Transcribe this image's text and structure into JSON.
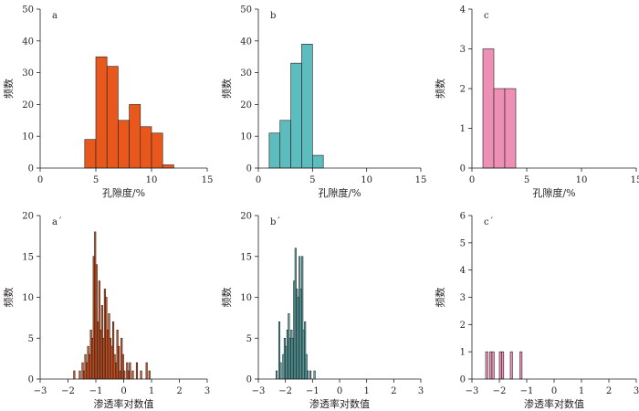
{
  "chart_data": [
    {
      "type": "bar",
      "panel_label": "a",
      "xlabel": "孔隙度/%",
      "ylabel": "频数",
      "xlim": [
        0,
        15
      ],
      "ylim": [
        0,
        50
      ],
      "xticks": [
        0,
        5,
        10,
        15
      ],
      "yticks": [
        0,
        10,
        20,
        30,
        40,
        50
      ],
      "color": "#e8581c",
      "bin_width": 1,
      "bins": [
        {
          "x0": 4,
          "value": 9
        },
        {
          "x0": 5,
          "value": 35
        },
        {
          "x0": 6,
          "value": 32
        },
        {
          "x0": 7,
          "value": 15
        },
        {
          "x0": 8,
          "value": 20
        },
        {
          "x0": 9,
          "value": 13
        },
        {
          "x0": 10,
          "value": 11
        },
        {
          "x0": 11,
          "value": 1
        }
      ]
    },
    {
      "type": "bar",
      "panel_label": "b",
      "xlabel": "孔隙度/%",
      "ylabel": "频数",
      "xlim": [
        0,
        15
      ],
      "ylim": [
        0,
        50
      ],
      "xticks": [
        0,
        5,
        10,
        15
      ],
      "yticks": [
        0,
        10,
        20,
        30,
        40,
        50
      ],
      "color": "#5dbcbd",
      "bin_width": 1,
      "bins": [
        {
          "x0": 1,
          "value": 11
        },
        {
          "x0": 2,
          "value": 15
        },
        {
          "x0": 3,
          "value": 33
        },
        {
          "x0": 4,
          "value": 39
        },
        {
          "x0": 5,
          "value": 4
        }
      ]
    },
    {
      "type": "bar",
      "panel_label": "c",
      "xlabel": "孔隙度/%",
      "ylabel": "频数",
      "xlim": [
        0,
        15
      ],
      "ylim": [
        0,
        4
      ],
      "xticks": [
        0,
        5,
        10,
        15
      ],
      "yticks": [
        0,
        1,
        2,
        3,
        4
      ],
      "color": "#ee8fb6",
      "bin_width": 1,
      "bins": [
        {
          "x0": 1,
          "value": 3
        },
        {
          "x0": 2,
          "value": 2
        },
        {
          "x0": 3,
          "value": 2
        }
      ]
    },
    {
      "type": "bar",
      "panel_label": "a´",
      "xlabel": "渗透率对数值",
      "ylabel": "频数",
      "xlim": [
        -3,
        3
      ],
      "ylim": [
        0,
        20
      ],
      "xticks": [
        -3,
        -2,
        -1,
        0,
        1,
        2,
        3
      ],
      "yticks": [
        0,
        5,
        10,
        15,
        20
      ],
      "color": "#e8581c",
      "bin_width": 0.05,
      "bins": [
        {
          "x0": -1.8,
          "value": 1
        },
        {
          "x0": -1.6,
          "value": 1
        },
        {
          "x0": -1.5,
          "value": 2
        },
        {
          "x0": -1.45,
          "value": 1
        },
        {
          "x0": -1.4,
          "value": 3
        },
        {
          "x0": -1.35,
          "value": 2
        },
        {
          "x0": -1.3,
          "value": 4
        },
        {
          "x0": -1.25,
          "value": 3
        },
        {
          "x0": -1.2,
          "value": 6
        },
        {
          "x0": -1.15,
          "value": 5
        },
        {
          "x0": -1.1,
          "value": 15
        },
        {
          "x0": -1.05,
          "value": 18
        },
        {
          "x0": -1.0,
          "value": 14
        },
        {
          "x0": -0.95,
          "value": 7
        },
        {
          "x0": -0.9,
          "value": 12
        },
        {
          "x0": -0.85,
          "value": 6
        },
        {
          "x0": -0.8,
          "value": 9
        },
        {
          "x0": -0.75,
          "value": 5
        },
        {
          "x0": -0.7,
          "value": 11
        },
        {
          "x0": -0.65,
          "value": 10
        },
        {
          "x0": -0.6,
          "value": 6
        },
        {
          "x0": -0.55,
          "value": 8
        },
        {
          "x0": -0.5,
          "value": 5
        },
        {
          "x0": -0.45,
          "value": 4
        },
        {
          "x0": -0.4,
          "value": 7
        },
        {
          "x0": -0.35,
          "value": 3
        },
        {
          "x0": -0.3,
          "value": 2
        },
        {
          "x0": -0.25,
          "value": 6
        },
        {
          "x0": -0.2,
          "value": 4
        },
        {
          "x0": -0.15,
          "value": 1
        },
        {
          "x0": -0.1,
          "value": 5
        },
        {
          "x0": -0.05,
          "value": 3
        },
        {
          "x0": 0.0,
          "value": 1
        },
        {
          "x0": 0.1,
          "value": 2
        },
        {
          "x0": 0.15,
          "value": 1
        },
        {
          "x0": 0.2,
          "value": 2
        },
        {
          "x0": 0.3,
          "value": 1
        },
        {
          "x0": 0.45,
          "value": 2
        },
        {
          "x0": 0.6,
          "value": 1
        },
        {
          "x0": 0.8,
          "value": 2
        },
        {
          "x0": 0.9,
          "value": 1
        }
      ]
    },
    {
      "type": "bar",
      "panel_label": "b´",
      "xlabel": "渗透率对数值",
      "ylabel": "频数",
      "xlim": [
        -3,
        3
      ],
      "ylim": [
        0,
        20
      ],
      "xticks": [
        -3,
        -2,
        -1,
        0,
        1,
        2,
        3
      ],
      "yticks": [
        0,
        5,
        10,
        15,
        20
      ],
      "color": "#5dbcbd",
      "bin_width": 0.05,
      "bins": [
        {
          "x0": -2.35,
          "value": 1
        },
        {
          "x0": -2.25,
          "value": 7
        },
        {
          "x0": -2.2,
          "value": 2
        },
        {
          "x0": -2.1,
          "value": 3
        },
        {
          "x0": -2.05,
          "value": 5
        },
        {
          "x0": -2.0,
          "value": 4
        },
        {
          "x0": -1.95,
          "value": 6
        },
        {
          "x0": -1.9,
          "value": 8
        },
        {
          "x0": -1.85,
          "value": 5
        },
        {
          "x0": -1.8,
          "value": 6
        },
        {
          "x0": -1.75,
          "value": 5
        },
        {
          "x0": -1.7,
          "value": 12
        },
        {
          "x0": -1.65,
          "value": 16
        },
        {
          "x0": -1.6,
          "value": 11
        },
        {
          "x0": -1.55,
          "value": 10
        },
        {
          "x0": -1.5,
          "value": 15
        },
        {
          "x0": -1.45,
          "value": 11
        },
        {
          "x0": -1.4,
          "value": 15
        },
        {
          "x0": -1.35,
          "value": 6
        },
        {
          "x0": -1.3,
          "value": 7
        },
        {
          "x0": -1.25,
          "value": 3
        },
        {
          "x0": -1.2,
          "value": 1
        },
        {
          "x0": -1.1,
          "value": 1
        },
        {
          "x0": -0.95,
          "value": 1
        }
      ]
    },
    {
      "type": "bar",
      "panel_label": "c´",
      "xlabel": "渗透率对数值",
      "ylabel": "频数",
      "xlim": [
        -3,
        3
      ],
      "ylim": [
        0,
        6
      ],
      "xticks": [
        -3,
        -2,
        -1,
        0,
        1,
        2,
        3
      ],
      "yticks": [
        0,
        1,
        2,
        3,
        4,
        5,
        6
      ],
      "color": "#ee8fb6",
      "bin_width": 0.08,
      "bins": [
        {
          "x0": -2.5,
          "value": 1
        },
        {
          "x0": -2.35,
          "value": 1
        },
        {
          "x0": -2.27,
          "value": 1
        },
        {
          "x0": -2.0,
          "value": 1
        },
        {
          "x0": -1.92,
          "value": 1
        },
        {
          "x0": -1.6,
          "value": 1
        },
        {
          "x0": -1.25,
          "value": 1
        }
      ]
    }
  ]
}
